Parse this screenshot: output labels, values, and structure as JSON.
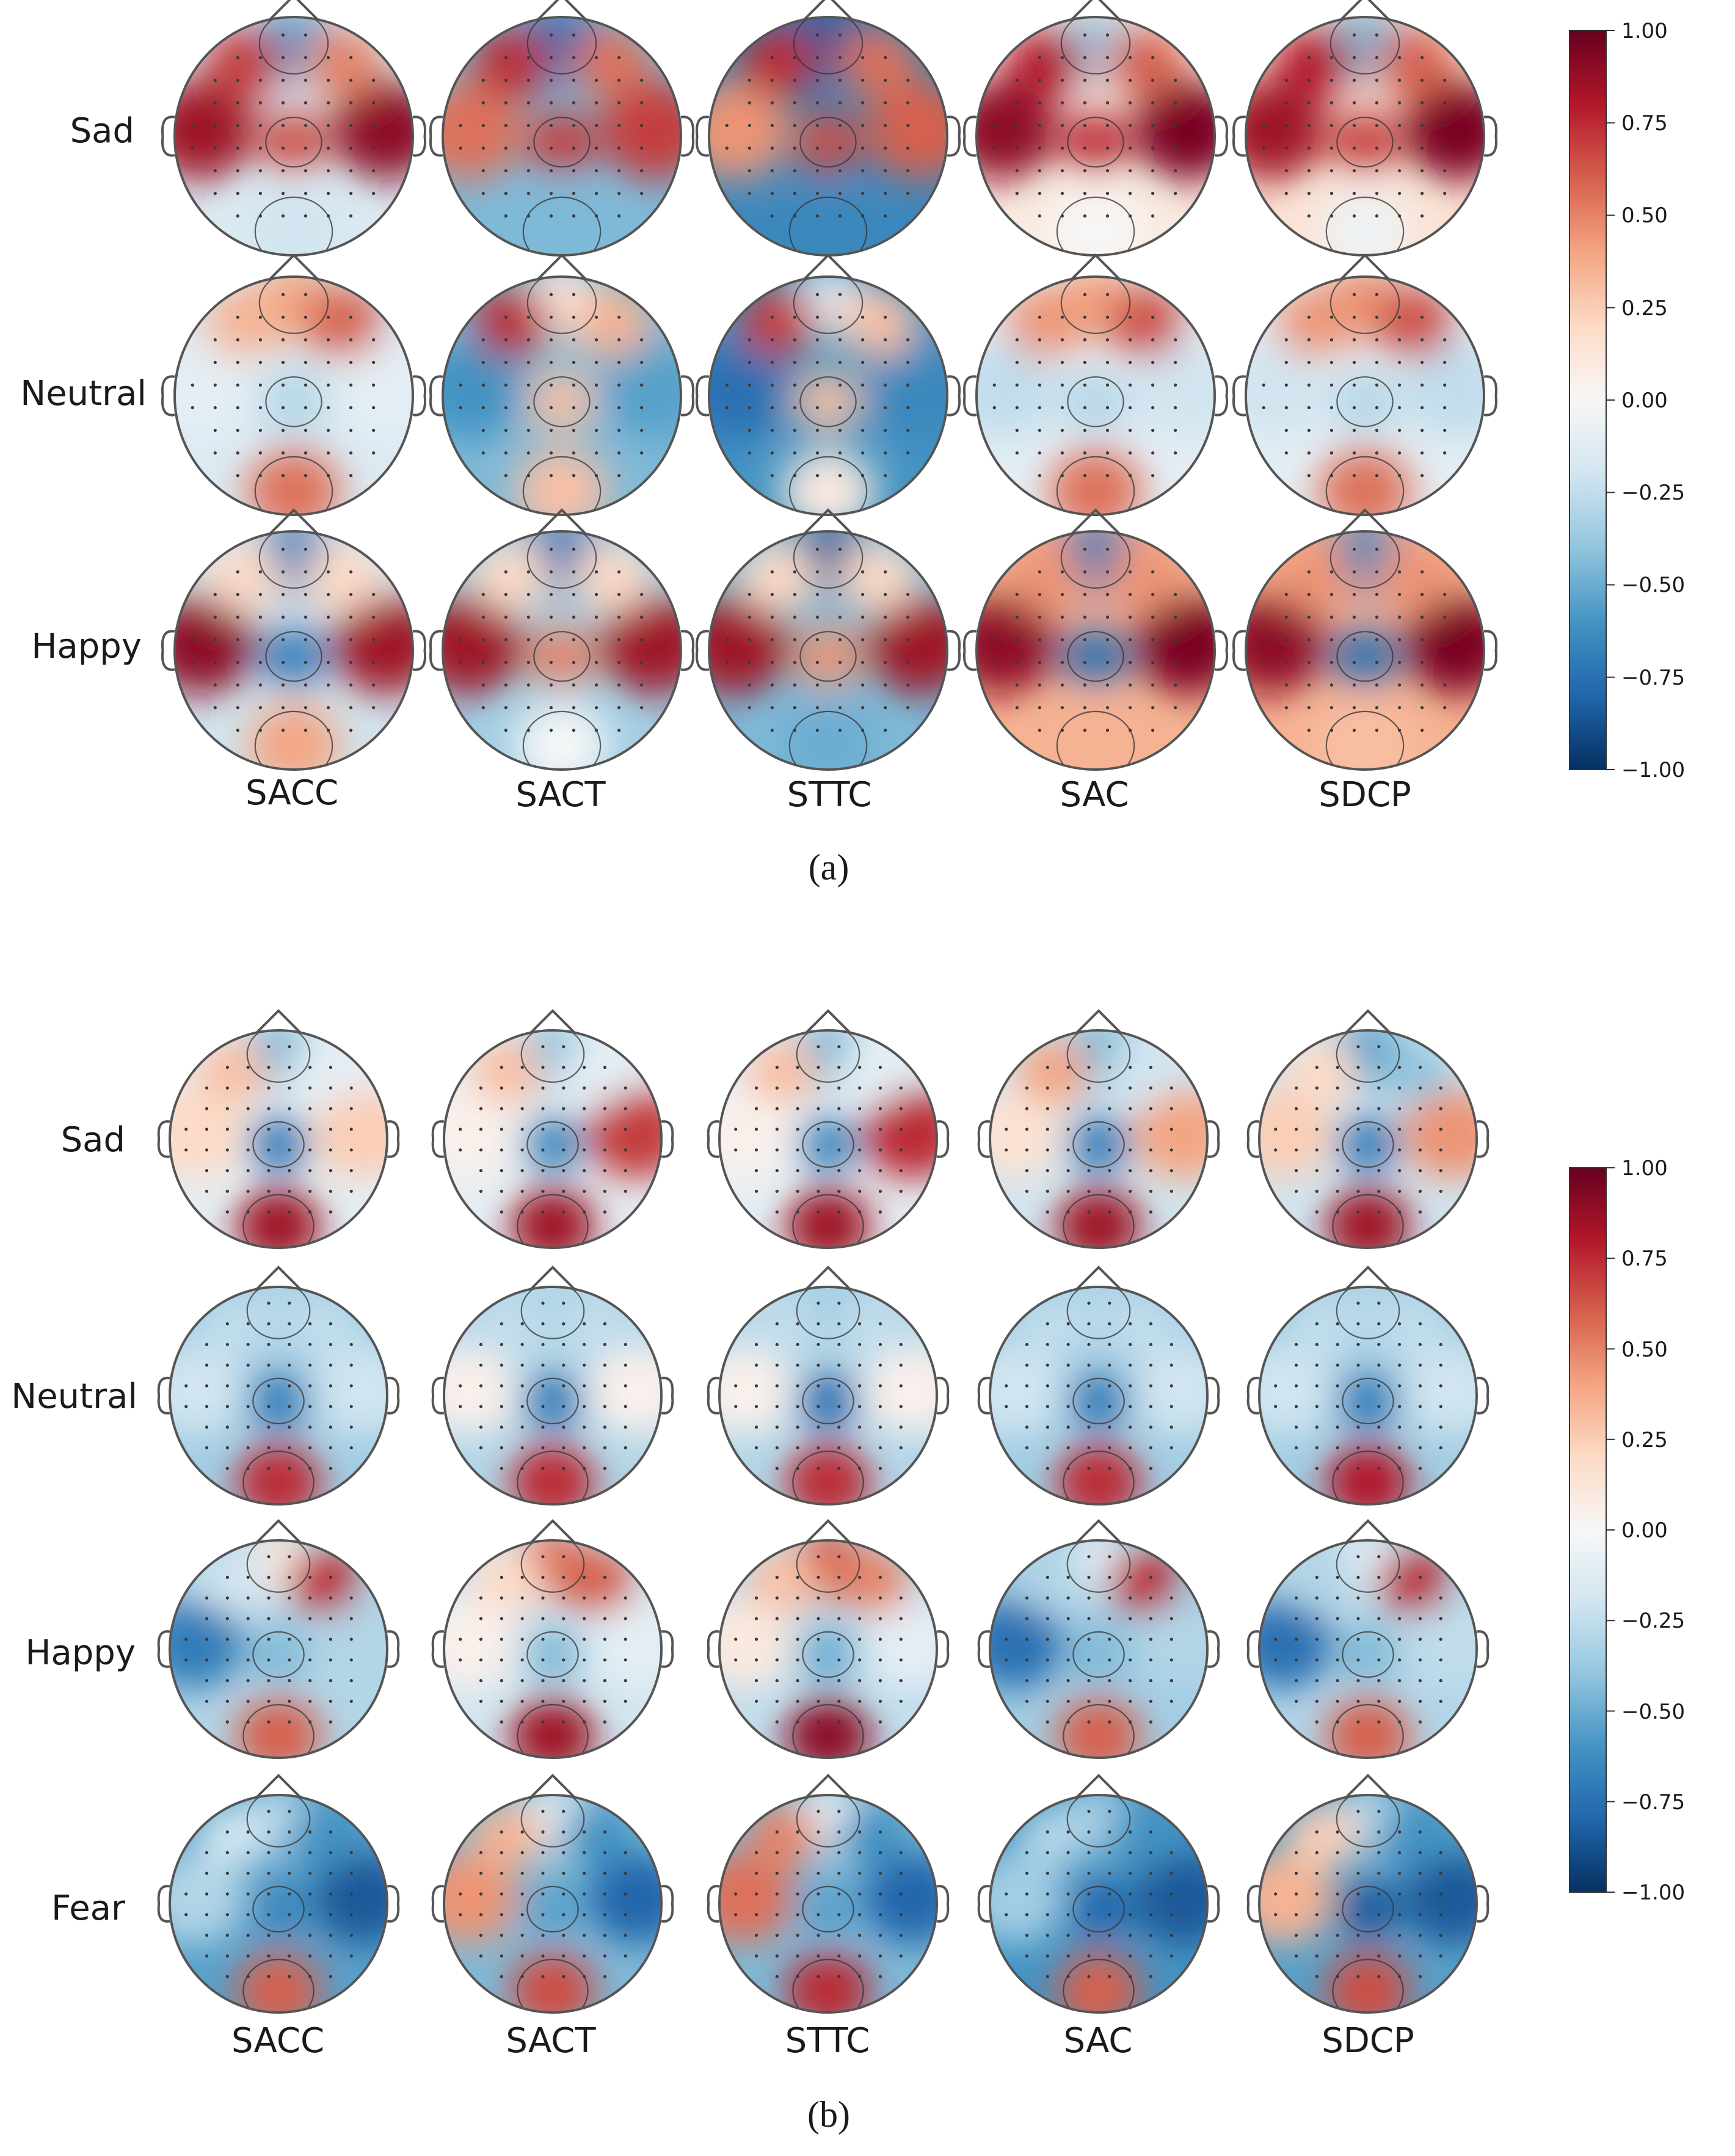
{
  "panels": [
    {
      "caption": "(a)",
      "rows": [
        "Sad",
        "Neutral",
        "Happy"
      ],
      "columns": [
        "SACC",
        "SACT",
        "STTC",
        "SAC",
        "SDCP"
      ],
      "colorbar": {
        "ticks": [
          "1.00",
          "0.75",
          "0.50",
          "0.25",
          "0.00",
          "−0.25",
          "−0.50",
          "−0.75",
          "−1.00"
        ],
        "min": -1.0,
        "max": 1.0
      }
    },
    {
      "caption": "(b)",
      "rows": [
        "Sad",
        "Neutral",
        "Happy",
        "Fear"
      ],
      "columns": [
        "SACC",
        "SACT",
        "STTC",
        "SAC",
        "SDCP"
      ],
      "colorbar": {
        "ticks": [
          "1.00",
          "0.75",
          "0.50",
          "0.25",
          "0.00",
          "−0.25",
          "−0.50",
          "−0.75",
          "−1.00"
        ],
        "min": -1.0,
        "max": 1.0
      }
    }
  ],
  "colormap": {
    "name": "RdBu_r",
    "stops": [
      "#053061",
      "#2166ac",
      "#4393c3",
      "#92c5de",
      "#d1e5f0",
      "#f7f7f7",
      "#fddbc7",
      "#f4a582",
      "#d6604d",
      "#b2182b",
      "#67001f"
    ]
  },
  "topomaps": {
    "a": [
      [
        {
          "bg": -0.15,
          "front": -0.55,
          "left": 0.85,
          "right": 0.9,
          "center": 0.65,
          "back": -0.2,
          "lfront": 0.7,
          "rfront": 0.5
        },
        {
          "bg": -0.45,
          "front": -0.75,
          "left": 0.55,
          "right": 0.7,
          "center": 0.7,
          "back": -0.45,
          "lfront": 0.75,
          "rfront": 0.55
        },
        {
          "bg": -0.65,
          "front": -0.85,
          "left": 0.45,
          "right": 0.6,
          "center": 0.65,
          "back": -0.65,
          "lfront": 0.75,
          "rfront": 0.55
        },
        {
          "bg": 0.1,
          "front": -0.35,
          "left": 0.9,
          "right": 0.95,
          "center": 0.75,
          "back": 0.0,
          "lfront": 0.8,
          "rfront": 0.6
        },
        {
          "bg": 0.15,
          "front": -0.45,
          "left": 0.85,
          "right": 0.95,
          "center": 0.7,
          "back": -0.05,
          "lfront": 0.8,
          "rfront": 0.6
        }
      ],
      [
        {
          "bg": -0.15,
          "front": 0.4,
          "left": -0.1,
          "right": -0.1,
          "center": -0.3,
          "back": 0.55,
          "lfront": 0.35,
          "rfront": 0.6
        },
        {
          "bg": -0.45,
          "front": 0.1,
          "left": -0.6,
          "right": -0.55,
          "center": 0.3,
          "back": 0.3,
          "lfront": 0.75,
          "rfront": 0.35
        },
        {
          "bg": -0.6,
          "front": -0.15,
          "left": -0.75,
          "right": -0.65,
          "center": 0.3,
          "back": 0.1,
          "lfront": 0.7,
          "rfront": 0.3
        },
        {
          "bg": -0.1,
          "front": 0.4,
          "left": -0.25,
          "right": -0.2,
          "center": -0.3,
          "back": 0.55,
          "lfront": 0.45,
          "rfront": 0.65
        },
        {
          "bg": -0.1,
          "front": 0.45,
          "left": -0.2,
          "right": -0.25,
          "center": -0.3,
          "back": 0.55,
          "lfront": 0.45,
          "rfront": 0.65
        }
      ],
      [
        {
          "bg": -0.2,
          "front": -0.7,
          "left": 0.9,
          "right": 0.85,
          "center": -0.7,
          "back": 0.4,
          "lfront": 0.2,
          "rfront": 0.2
        },
        {
          "bg": -0.35,
          "front": -0.75,
          "left": 0.85,
          "right": 0.85,
          "center": 0.5,
          "back": 0.0,
          "lfront": 0.2,
          "rfront": 0.2
        },
        {
          "bg": -0.45,
          "front": -0.85,
          "left": 0.85,
          "right": 0.85,
          "center": 0.45,
          "back": -0.5,
          "lfront": 0.2,
          "rfront": 0.2
        },
        {
          "bg": 0.35,
          "front": -0.7,
          "left": 0.9,
          "right": 0.95,
          "center": -0.75,
          "back": 0.35,
          "lfront": 0.45,
          "rfront": 0.45
        },
        {
          "bg": 0.35,
          "front": -0.65,
          "left": 0.9,
          "right": 0.95,
          "center": -0.75,
          "back": 0.3,
          "lfront": 0.45,
          "rfront": 0.45
        }
      ]
    ],
    "b": [
      [
        {
          "bg": -0.1,
          "front": -0.45,
          "left": 0.2,
          "right": 0.25,
          "center": -0.7,
          "back": 0.85,
          "lfront": 0.3,
          "rfront": -0.1
        },
        {
          "bg": -0.1,
          "front": -0.4,
          "left": 0.05,
          "right": 0.7,
          "center": -0.65,
          "back": 0.85,
          "lfront": 0.3,
          "rfront": -0.1
        },
        {
          "bg": -0.1,
          "front": -0.45,
          "left": 0.05,
          "right": 0.75,
          "center": -0.65,
          "back": 0.85,
          "lfront": 0.3,
          "rfront": -0.1
        },
        {
          "bg": -0.2,
          "front": -0.45,
          "left": 0.15,
          "right": 0.4,
          "center": -0.7,
          "back": 0.85,
          "lfront": 0.4,
          "rfront": -0.2
        },
        {
          "bg": -0.2,
          "front": -0.55,
          "left": 0.25,
          "right": 0.45,
          "center": -0.7,
          "back": 0.85,
          "lfront": 0.2,
          "rfront": -0.4
        }
      ],
      [
        {
          "bg": -0.35,
          "front": -0.3,
          "left": -0.2,
          "right": -0.2,
          "center": -0.7,
          "back": 0.75,
          "lfront": -0.25,
          "rfront": -0.25
        },
        {
          "bg": -0.3,
          "front": -0.3,
          "left": 0.05,
          "right": 0.05,
          "center": -0.7,
          "back": 0.75,
          "lfront": -0.25,
          "rfront": -0.25
        },
        {
          "bg": -0.3,
          "front": -0.35,
          "left": 0.05,
          "right": 0.05,
          "center": -0.75,
          "back": 0.75,
          "lfront": -0.25,
          "rfront": -0.25
        },
        {
          "bg": -0.35,
          "front": -0.3,
          "left": -0.2,
          "right": -0.2,
          "center": -0.7,
          "back": 0.75,
          "lfront": -0.25,
          "rfront": -0.25
        },
        {
          "bg": -0.35,
          "front": -0.3,
          "left": -0.2,
          "right": -0.2,
          "center": -0.7,
          "back": 0.8,
          "lfront": -0.25,
          "rfront": -0.25
        }
      ],
      [
        {
          "bg": -0.3,
          "front": 0.1,
          "left": -0.7,
          "right": -0.3,
          "center": -0.45,
          "back": 0.6,
          "lfront": -0.2,
          "rfront": 0.75
        },
        {
          "bg": -0.2,
          "front": 0.55,
          "left": 0.05,
          "right": -0.1,
          "center": -0.45,
          "back": 0.85,
          "lfront": 0.2,
          "rfront": 0.6
        },
        {
          "bg": -0.25,
          "front": 0.6,
          "left": 0.1,
          "right": -0.1,
          "center": -0.5,
          "back": 0.9,
          "lfront": 0.3,
          "rfront": 0.5
        },
        {
          "bg": -0.35,
          "front": -0.1,
          "left": -0.75,
          "right": -0.3,
          "center": -0.45,
          "back": 0.6,
          "lfront": -0.3,
          "rfront": 0.75
        },
        {
          "bg": -0.3,
          "front": -0.1,
          "left": -0.75,
          "right": -0.25,
          "center": -0.45,
          "back": 0.6,
          "lfront": -0.3,
          "rfront": 0.75
        }
      ],
      [
        {
          "bg": -0.55,
          "front": -0.3,
          "left": -0.3,
          "right": -0.85,
          "center": -0.65,
          "back": 0.6,
          "lfront": -0.2,
          "rfront": -0.6
        },
        {
          "bg": -0.45,
          "front": -0.15,
          "left": 0.45,
          "right": -0.8,
          "center": -0.55,
          "back": 0.65,
          "lfront": 0.35,
          "rfront": -0.6
        },
        {
          "bg": -0.45,
          "front": -0.1,
          "left": 0.55,
          "right": -0.8,
          "center": -0.55,
          "back": 0.75,
          "lfront": 0.5,
          "rfront": -0.6
        },
        {
          "bg": -0.6,
          "front": -0.35,
          "left": -0.35,
          "right": -0.85,
          "center": -0.8,
          "back": 0.6,
          "lfront": -0.3,
          "rfront": -0.6
        },
        {
          "bg": -0.55,
          "front": -0.3,
          "left": 0.35,
          "right": -0.85,
          "center": -0.85,
          "back": 0.65,
          "lfront": 0.25,
          "rfront": -0.6
        }
      ]
    ]
  }
}
